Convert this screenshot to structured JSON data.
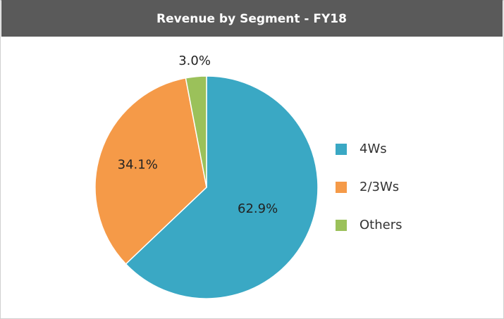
{
  "chart_data": {
    "type": "pie",
    "title": "Revenue by Segment - FY18",
    "categories": [
      "4Ws",
      "2/3Ws",
      "Others"
    ],
    "values": [
      62.9,
      34.1,
      3.0
    ],
    "value_labels": [
      "62.9%",
      "34.1%",
      "3.0%"
    ],
    "colors": [
      "#3aa8c4",
      "#f59a48",
      "#9bc15a"
    ],
    "legend": "right"
  }
}
